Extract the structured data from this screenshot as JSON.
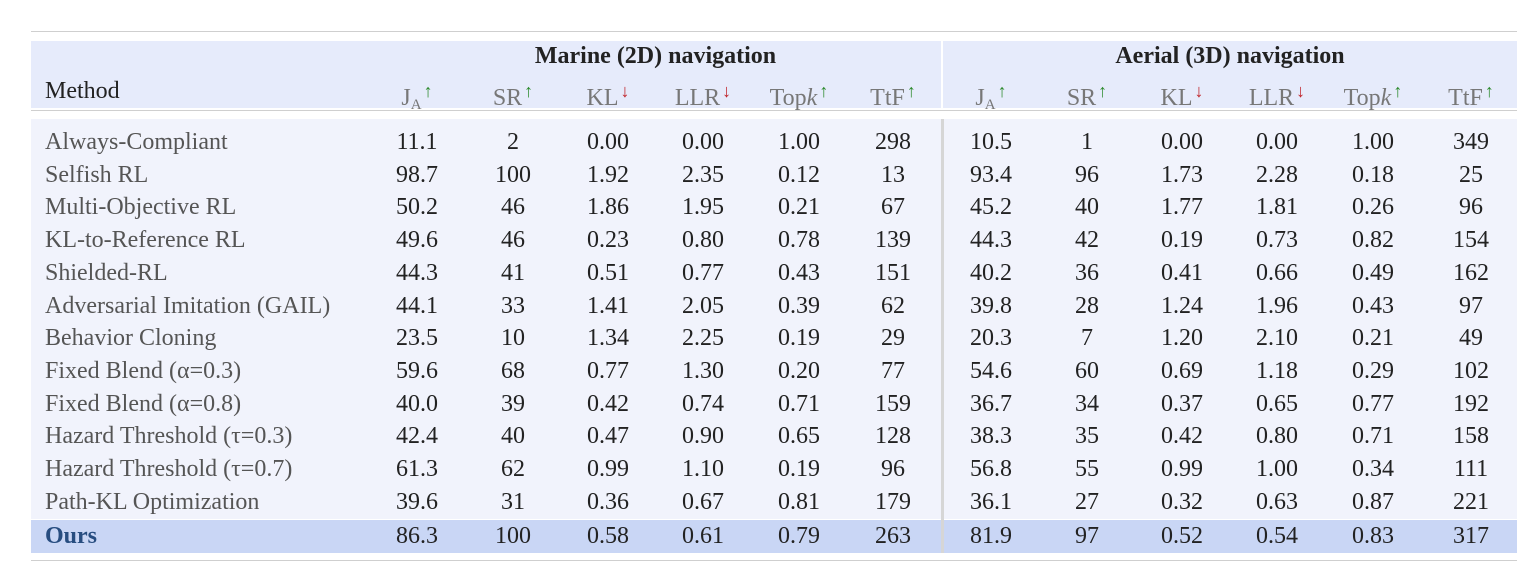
{
  "table": {
    "group_marine": "Marine (2D) navigation",
    "group_aerial": "Aerial (3D) navigation",
    "method_header": "Method",
    "columns": [
      {
        "base": "J",
        "sub": "A",
        "arrow": "↑",
        "dir": "up"
      },
      {
        "base": "SR",
        "sub": "",
        "arrow": "↑",
        "dir": "up"
      },
      {
        "base": "KL",
        "sub": "",
        "arrow": "↓",
        "dir": "down"
      },
      {
        "base": "LLR",
        "sub": "",
        "arrow": "↓",
        "dir": "down"
      },
      {
        "base": "Top",
        "italic": "k",
        "sub": "",
        "arrow": "↑",
        "dir": "up"
      },
      {
        "base": "TtF",
        "sub": "",
        "arrow": "↑",
        "dir": "up"
      }
    ],
    "rows": [
      {
        "method": "Always-Compliant",
        "marine": [
          "11.1",
          "2",
          "0.00",
          "0.00",
          "1.00",
          "298"
        ],
        "aerial": [
          "10.5",
          "1",
          "0.00",
          "0.00",
          "1.00",
          "349"
        ]
      },
      {
        "method": "Selfish RL",
        "marine": [
          "98.7",
          "100",
          "1.92",
          "2.35",
          "0.12",
          "13"
        ],
        "aerial": [
          "93.4",
          "96",
          "1.73",
          "2.28",
          "0.18",
          "25"
        ]
      },
      {
        "method": "Multi-Objective RL",
        "marine": [
          "50.2",
          "46",
          "1.86",
          "1.95",
          "0.21",
          "67"
        ],
        "aerial": [
          "45.2",
          "40",
          "1.77",
          "1.81",
          "0.26",
          "96"
        ]
      },
      {
        "method": "KL-to-Reference RL",
        "marine": [
          "49.6",
          "46",
          "0.23",
          "0.80",
          "0.78",
          "139"
        ],
        "aerial": [
          "44.3",
          "42",
          "0.19",
          "0.73",
          "0.82",
          "154"
        ]
      },
      {
        "method": "Shielded-RL",
        "marine": [
          "44.3",
          "41",
          "0.51",
          "0.77",
          "0.43",
          "151"
        ],
        "aerial": [
          "40.2",
          "36",
          "0.41",
          "0.66",
          "0.49",
          "162"
        ]
      },
      {
        "method": "Adversarial Imitation (GAIL)",
        "marine": [
          "44.1",
          "33",
          "1.41",
          "2.05",
          "0.39",
          "62"
        ],
        "aerial": [
          "39.8",
          "28",
          "1.24",
          "1.96",
          "0.43",
          "97"
        ]
      },
      {
        "method": "Behavior Cloning",
        "marine": [
          "23.5",
          "10",
          "1.34",
          "2.25",
          "0.19",
          "29"
        ],
        "aerial": [
          "20.3",
          "7",
          "1.20",
          "2.10",
          "0.21",
          "49"
        ]
      },
      {
        "method": "Fixed Blend (α=0.3)",
        "marine": [
          "59.6",
          "68",
          "0.77",
          "1.30",
          "0.20",
          "77"
        ],
        "aerial": [
          "54.6",
          "60",
          "0.69",
          "1.18",
          "0.29",
          "102"
        ]
      },
      {
        "method": "Fixed Blend (α=0.8)",
        "marine": [
          "40.0",
          "39",
          "0.42",
          "0.74",
          "0.71",
          "159"
        ],
        "aerial": [
          "36.7",
          "34",
          "0.37",
          "0.65",
          "0.77",
          "192"
        ]
      },
      {
        "method": "Hazard Threshold (τ=0.3)",
        "marine": [
          "42.4",
          "40",
          "0.47",
          "0.90",
          "0.65",
          "128"
        ],
        "aerial": [
          "38.3",
          "35",
          "0.42",
          "0.80",
          "0.71",
          "158"
        ]
      },
      {
        "method": "Hazard Threshold (τ=0.7)",
        "marine": [
          "61.3",
          "62",
          "0.99",
          "1.10",
          "0.19",
          "96"
        ],
        "aerial": [
          "56.8",
          "55",
          "0.99",
          "1.00",
          "0.34",
          "111"
        ]
      },
      {
        "method": "Path-KL Optimization",
        "marine": [
          "39.6",
          "31",
          "0.36",
          "0.67",
          "0.81",
          "179"
        ],
        "aerial": [
          "36.1",
          "27",
          "0.32",
          "0.63",
          "0.87",
          "221"
        ]
      }
    ],
    "ours": {
      "method": "Ours",
      "marine": [
        "86.3",
        "100",
        "0.58",
        "0.61",
        "0.79",
        "263"
      ],
      "aerial": [
        "81.9",
        "97",
        "0.52",
        "0.54",
        "0.83",
        "317"
      ]
    },
    "colors": {
      "header_band": "#e6ebfb",
      "body_band": "#f1f3fc",
      "ours_band": "#c9d6f5",
      "up_arrow": "#2e8b2e",
      "down_arrow": "#c0242a",
      "ours_text": "#274d80"
    }
  }
}
